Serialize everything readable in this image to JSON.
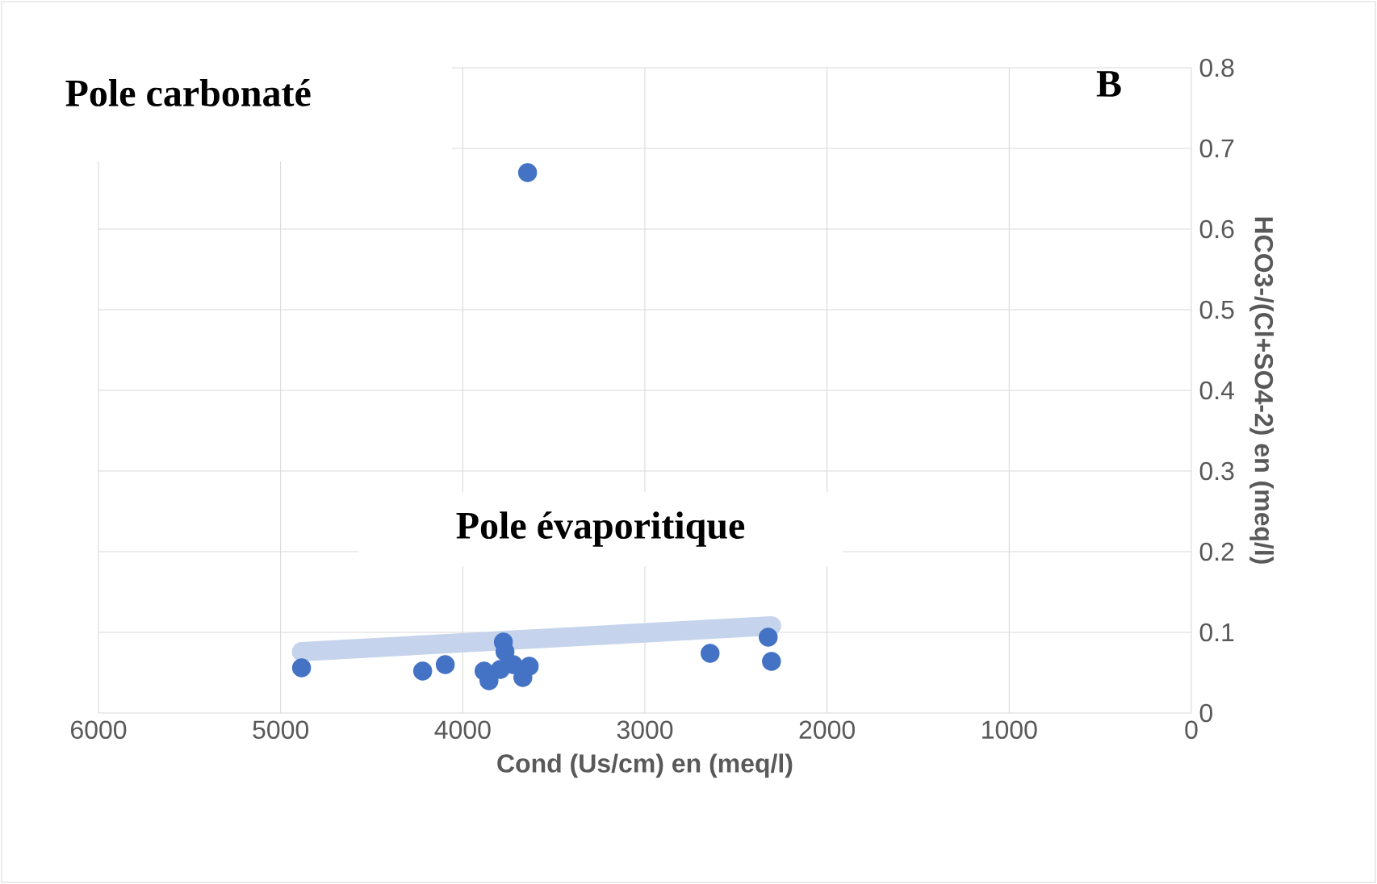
{
  "chart_data": {
    "type": "scatter",
    "xlabel": "Cond (Us/cm) en (meq/l)",
    "ylabel": "HCO3-/(Cl+SO4-2) en (meq/l)",
    "xlim": [
      6000,
      0
    ],
    "xticks": [
      6000,
      5000,
      4000,
      3000,
      2000,
      1000,
      0
    ],
    "ylim": [
      0,
      0.8
    ],
    "yticks": [
      0,
      0.1,
      0.2,
      0.3,
      0.4,
      0.5,
      0.6,
      0.7,
      0.8
    ],
    "grid": true,
    "marker": "circle",
    "annotations": [
      "Pole carbonaté",
      "B",
      "Pole évaporitique"
    ],
    "series": [
      {
        "type": "line",
        "color": "#c5d4ec",
        "marker": "none",
        "x": [
          4885,
          2305
        ],
        "values": [
          0.076,
          0.108
        ]
      },
      {
        "color": "#4472c4",
        "x": [
          4885,
          4220,
          4096,
          3777,
          3883,
          3856,
          3794,
          3723,
          3670,
          3635,
          3768,
          2642,
          2323,
          2305,
          3644
        ],
        "values": [
          0.056,
          0.052,
          0.06,
          0.088,
          0.052,
          0.04,
          0.054,
          0.06,
          0.044,
          0.058,
          0.076,
          0.074,
          0.094,
          0.064,
          0.67
        ]
      }
    ]
  }
}
